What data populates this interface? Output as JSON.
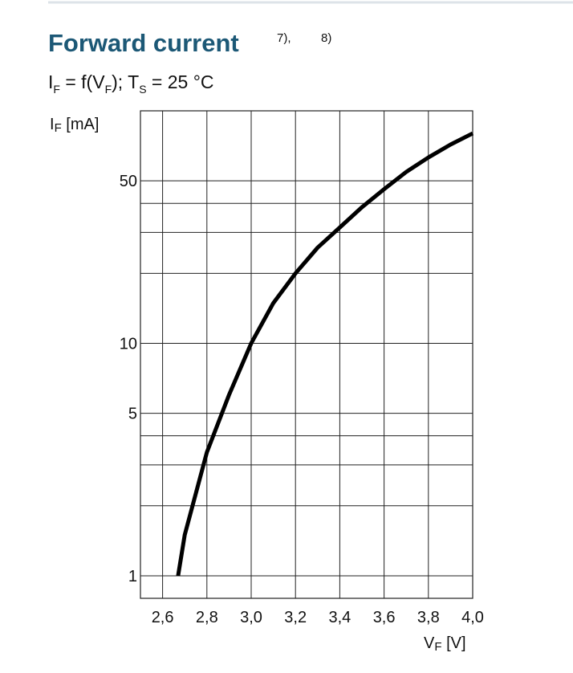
{
  "chart_data": {
    "type": "line",
    "log_y": true,
    "grid": true,
    "color": "#000000",
    "title": "Forward current",
    "title_notes": [
      "7),",
      "8)"
    ],
    "subtitle_parts": [
      "I",
      "F",
      " = f(V",
      "F",
      "); T",
      "S",
      " = 25 °C"
    ],
    "ylabel_parts": [
      "I",
      "F",
      " [mA]"
    ],
    "xlabel_parts": [
      "V",
      "F",
      " [V]"
    ],
    "x": [
      2.67,
      2.7,
      2.8,
      2.9,
      3.0,
      3.1,
      3.2,
      3.3,
      3.4,
      3.5,
      3.6,
      3.7,
      3.8,
      3.9,
      4.0
    ],
    "values": [
      1,
      1.5,
      3.4,
      6.0,
      10,
      14.9,
      20,
      25.8,
      31.5,
      38.5,
      46,
      54.6,
      63,
      71.6,
      80
    ],
    "xlim": [
      2.5,
      4.0
    ],
    "xticks": [
      {
        "value": 2.6,
        "label": "2,6"
      },
      {
        "value": 2.8,
        "label": "2,8"
      },
      {
        "value": 3.0,
        "label": "3,0"
      },
      {
        "value": 3.2,
        "label": "3,2"
      },
      {
        "value": 3.4,
        "label": "3,4"
      },
      {
        "value": 3.6,
        "label": "3,6"
      },
      {
        "value": 3.8,
        "label": "3,8"
      },
      {
        "value": 4.0,
        "label": "4,0"
      }
    ],
    "ylim": [
      0.8,
      100
    ],
    "yticks": [
      1,
      5,
      10,
      50
    ],
    "yminor": [
      2,
      3,
      4,
      20,
      30,
      40
    ]
  }
}
